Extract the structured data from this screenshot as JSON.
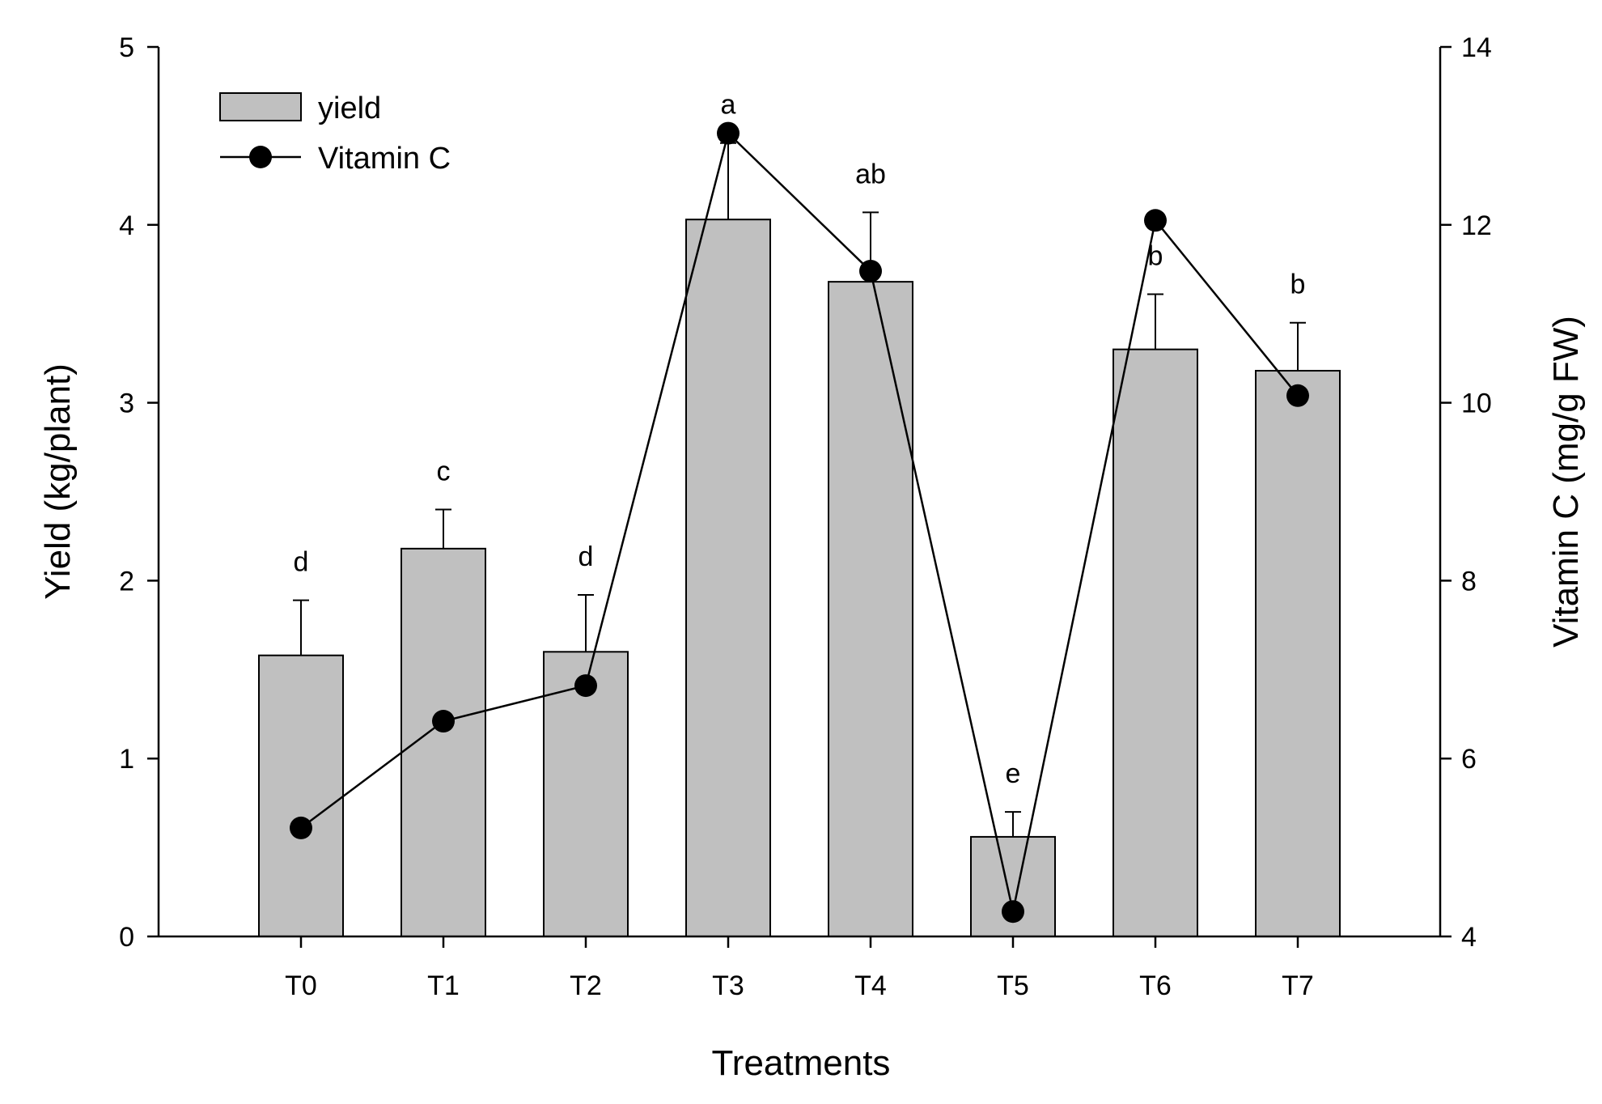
{
  "chart_data": {
    "type": "bar",
    "categories": [
      "T0",
      "T1",
      "T2",
      "T3",
      "T4",
      "T5",
      "T6",
      "T7"
    ],
    "series": [
      {
        "name": "yield",
        "type": "bar",
        "axis": "left",
        "values": [
          1.58,
          2.18,
          1.6,
          4.03,
          3.68,
          0.56,
          3.3,
          3.18
        ],
        "errors": [
          0.31,
          0.22,
          0.32,
          0.43,
          0.39,
          0.14,
          0.31,
          0.27
        ],
        "color": "#c0c0c0"
      },
      {
        "name": "Vitamin C",
        "type": "line",
        "axis": "right",
        "values": [
          5.22,
          6.42,
          6.82,
          13.03,
          11.48,
          4.28,
          12.05,
          10.08
        ],
        "color": "#000000"
      }
    ],
    "significance_letters": [
      "d",
      "c",
      "d",
      "a",
      "ab",
      "e",
      "b",
      "b"
    ],
    "xlabel": "Treatments",
    "ylabel": "Yield (kg/plant)",
    "y2label": "Vitamin C (mg/g FW)",
    "ylim": [
      0,
      5
    ],
    "y2lim": [
      4,
      14
    ],
    "yticks": [
      "0",
      "1",
      "2",
      "3",
      "4",
      "5"
    ],
    "y2ticks": [
      "4",
      "6",
      "8",
      "10",
      "12",
      "14"
    ],
    "legend_position": "top-left",
    "grid": false
  }
}
